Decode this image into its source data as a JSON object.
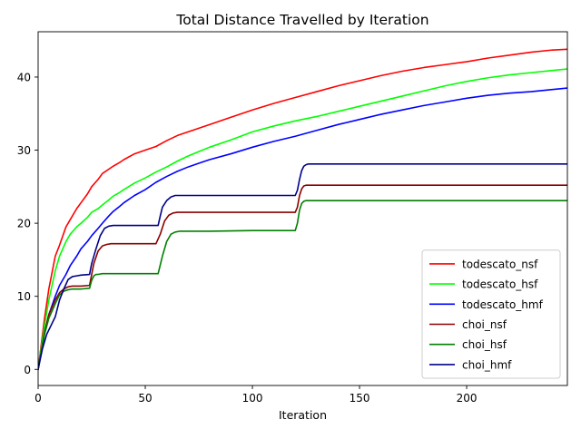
{
  "chart_data": {
    "type": "line",
    "title": "Total Distance Travelled by Iteration",
    "xlabel": "Iteration",
    "ylabel": "",
    "xlim": [
      0,
      247
    ],
    "ylim": [
      -2.2,
      46.2
    ],
    "x_ticks": [
      0,
      50,
      100,
      150,
      200
    ],
    "y_ticks": [
      0,
      10,
      20,
      30,
      40
    ],
    "grid": false,
    "legend_position": "lower-right",
    "series": [
      {
        "name": "todescato_nsf",
        "color": "#ff0000",
        "x": [
          0,
          3,
          5,
          8,
          10,
          13,
          15,
          18,
          20,
          23,
          25,
          28,
          30,
          33,
          35,
          38,
          40,
          45,
          50,
          55,
          60,
          65,
          70,
          75,
          80,
          90,
          100,
          110,
          120,
          130,
          140,
          150,
          160,
          170,
          180,
          190,
          200,
          210,
          220,
          230,
          240,
          247
        ],
        "y": [
          0,
          7,
          11,
          15.5,
          17,
          19.5,
          20.5,
          22,
          22.8,
          24,
          25,
          26,
          26.8,
          27.4,
          27.8,
          28.3,
          28.7,
          29.5,
          30,
          30.5,
          31.3,
          32,
          32.5,
          33,
          33.5,
          34.5,
          35.5,
          36.4,
          37.2,
          38,
          38.8,
          39.5,
          40.2,
          40.8,
          41.3,
          41.7,
          42.1,
          42.6,
          43,
          43.4,
          43.7,
          43.8
        ]
      },
      {
        "name": "todescato_hsf",
        "color": "#00ff00",
        "x": [
          0,
          3,
          5,
          8,
          10,
          13,
          15,
          18,
          20,
          23,
          25,
          28,
          30,
          33,
          35,
          38,
          40,
          45,
          50,
          55,
          60,
          65,
          70,
          75,
          80,
          90,
          100,
          110,
          120,
          130,
          140,
          150,
          160,
          170,
          180,
          190,
          200,
          210,
          220,
          230,
          240,
          247
        ],
        "y": [
          0,
          6,
          9.5,
          13.5,
          15.5,
          17.5,
          18.5,
          19.5,
          20,
          20.8,
          21.5,
          22,
          22.5,
          23.2,
          23.7,
          24.2,
          24.6,
          25.5,
          26.2,
          27,
          27.7,
          28.5,
          29.2,
          29.8,
          30.4,
          31.4,
          32.5,
          33.3,
          34,
          34.6,
          35.3,
          36,
          36.7,
          37.4,
          38.1,
          38.8,
          39.4,
          39.9,
          40.3,
          40.6,
          40.9,
          41.1
        ]
      },
      {
        "name": "todescato_hmf",
        "color": "#0000ff",
        "x": [
          0,
          3,
          5,
          8,
          10,
          13,
          15,
          18,
          20,
          23,
          25,
          28,
          30,
          33,
          35,
          38,
          40,
          45,
          50,
          55,
          60,
          65,
          70,
          75,
          80,
          90,
          100,
          110,
          120,
          130,
          140,
          150,
          160,
          170,
          180,
          190,
          200,
          210,
          220,
          230,
          240,
          247
        ],
        "y": [
          0,
          5,
          7.5,
          10,
          11.5,
          13,
          14.2,
          15.5,
          16.5,
          17.5,
          18.3,
          19.3,
          20,
          21,
          21.6,
          22.3,
          22.8,
          23.8,
          24.6,
          25.6,
          26.4,
          27.1,
          27.7,
          28.2,
          28.7,
          29.5,
          30.4,
          31.2,
          31.9,
          32.7,
          33.5,
          34.2,
          34.9,
          35.5,
          36.1,
          36.6,
          37.1,
          37.5,
          37.8,
          38,
          38.3,
          38.5
        ]
      },
      {
        "name": "choi_nsf",
        "color": "#8b0000",
        "x": [
          0,
          3,
          5,
          8,
          10,
          12,
          14,
          16,
          20,
          24,
          26,
          28,
          30,
          32,
          34,
          40,
          50,
          55,
          57,
          59,
          61,
          63,
          65,
          70,
          100,
          120,
          121,
          122,
          123,
          124,
          125,
          126,
          130,
          200,
          247
        ],
        "y": [
          0,
          5,
          7.5,
          9.5,
          10.5,
          11,
          11.3,
          11.4,
          11.4,
          11.5,
          14.5,
          16.2,
          16.9,
          17.1,
          17.2,
          17.2,
          17.2,
          17.2,
          18.5,
          20.3,
          21.1,
          21.4,
          21.5,
          21.5,
          21.5,
          21.5,
          22.2,
          23.8,
          24.7,
          25.1,
          25.2,
          25.2,
          25.2,
          25.2,
          25.2
        ]
      },
      {
        "name": "choi_hsf",
        "color": "#008000",
        "x": [
          0,
          3,
          5,
          8,
          10,
          12,
          14,
          16,
          20,
          24,
          25,
          26,
          27,
          28,
          30,
          35,
          40,
          50,
          56,
          58,
          60,
          62,
          64,
          66,
          70,
          80,
          100,
          120,
          121,
          122,
          123,
          124,
          125,
          126,
          130,
          200,
          247
        ],
        "y": [
          0,
          4.8,
          7,
          9,
          10.2,
          10.7,
          10.9,
          11,
          11,
          11.1,
          12.2,
          12.8,
          13,
          13,
          13.1,
          13.1,
          13.1,
          13.1,
          13.1,
          15.5,
          17.5,
          18.5,
          18.8,
          18.9,
          18.9,
          18.9,
          19,
          19,
          20,
          21.8,
          22.7,
          23,
          23.1,
          23.1,
          23.1,
          23.1,
          23.1
        ]
      },
      {
        "name": "choi_hmf",
        "color": "#00008b",
        "x": [
          0,
          2,
          4,
          6,
          8,
          10,
          12,
          14,
          16,
          18,
          20,
          24,
          25,
          27,
          29,
          31,
          33,
          35,
          40,
          50,
          56,
          57,
          58,
          60,
          62,
          64,
          65,
          70,
          100,
          120,
          121,
          122,
          123,
          124,
          125,
          126,
          127,
          130,
          200,
          247
        ],
        "y": [
          0,
          2.8,
          4.8,
          6,
          7.2,
          9.5,
          11,
          12.3,
          12.7,
          12.8,
          12.9,
          13,
          14.5,
          16.5,
          18.3,
          19.3,
          19.6,
          19.7,
          19.7,
          19.7,
          19.7,
          21,
          22.2,
          23.1,
          23.6,
          23.8,
          23.8,
          23.8,
          23.8,
          23.8,
          24.5,
          26,
          27.2,
          27.8,
          28,
          28.1,
          28.1,
          28.1,
          28.1,
          28.1
        ]
      }
    ]
  }
}
